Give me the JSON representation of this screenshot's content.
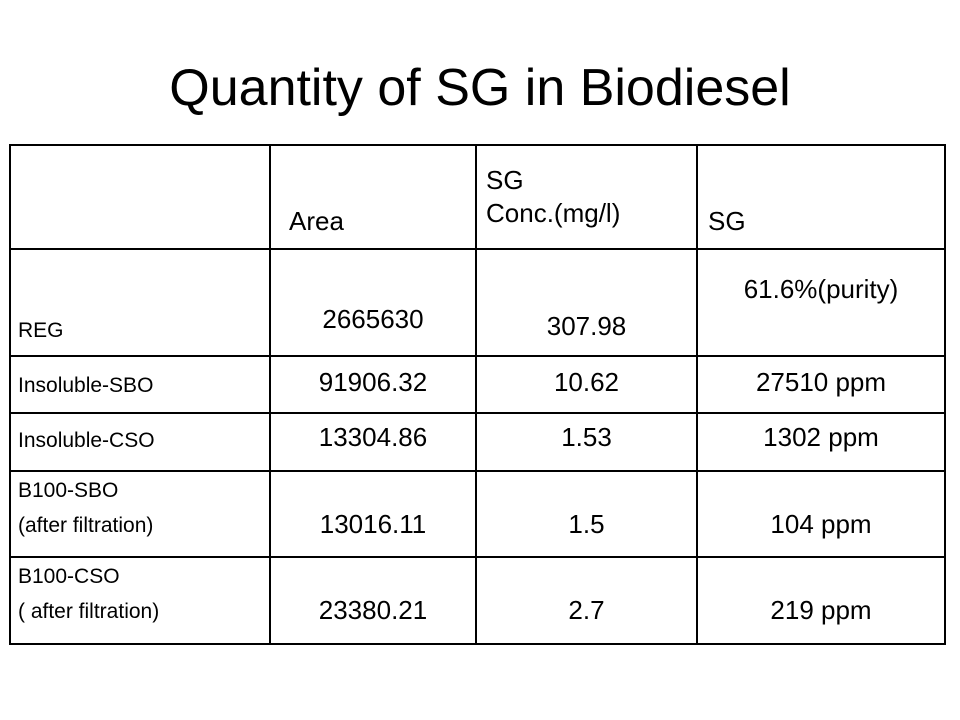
{
  "slide": {
    "title": "Quantity of SG in Biodiesel"
  },
  "table": {
    "headers": {
      "sample": "",
      "area": "Area",
      "sg_conc_line1": "SG",
      "sg_conc_line2": "Conc.(mg/l)",
      "sg": "SG"
    },
    "rows": [
      {
        "label_line1": "REG",
        "label_line2": "",
        "area": "2665630",
        "conc": "307.98",
        "sg": "61.6%(purity)"
      },
      {
        "label_line1": "Insoluble-SBO",
        "label_line2": "",
        "area": "91906.32",
        "conc": "10.62",
        "sg": "27510 ppm"
      },
      {
        "label_line1": "Insoluble-CSO",
        "label_line2": "",
        "area": "13304.86",
        "conc": "1.53",
        "sg": "1302 ppm"
      },
      {
        "label_line1": "B100-SBO",
        "label_line2": "(after filtration)",
        "area": "13016.11",
        "conc": "1.5",
        "sg": "104 ppm"
      },
      {
        "label_line1": "B100-CSO",
        "label_line2": "( after filtration)",
        "area": "23380.21",
        "conc": "2.7",
        "sg": "219 ppm"
      }
    ]
  }
}
